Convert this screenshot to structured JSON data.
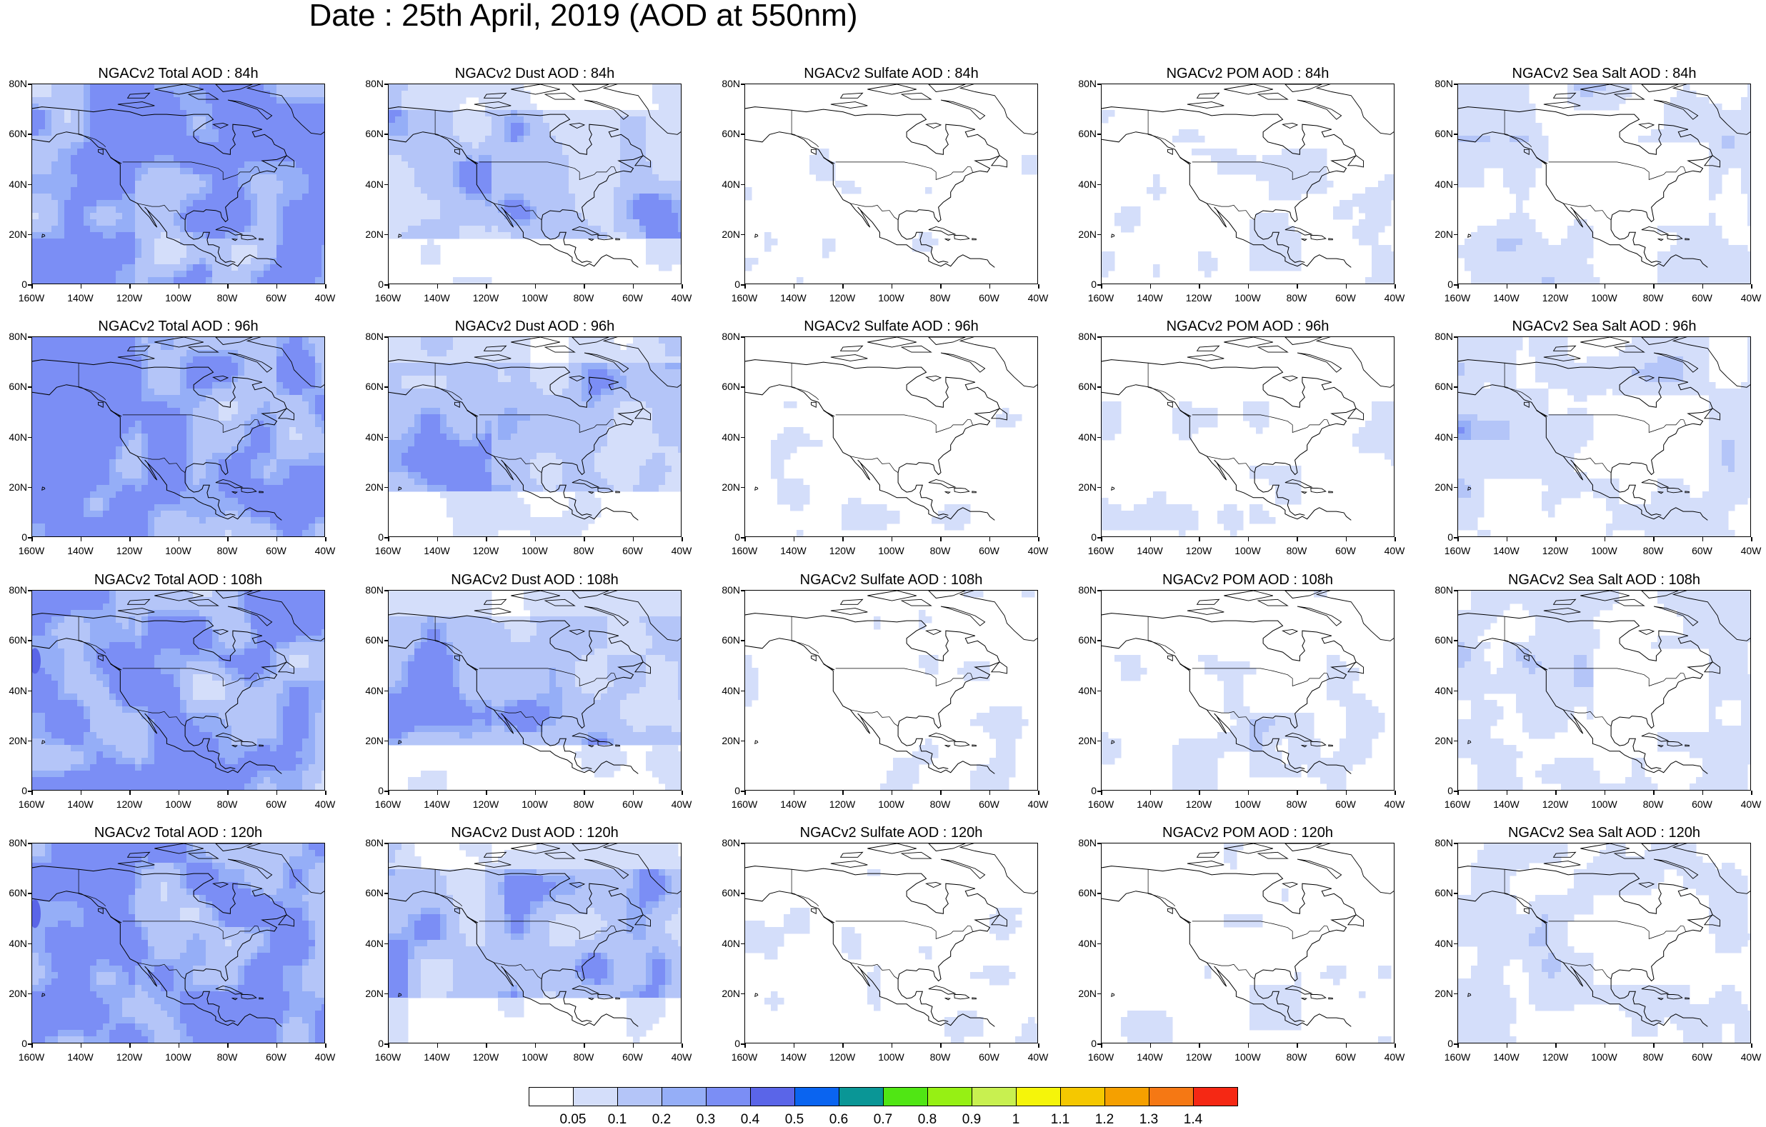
{
  "title": "Date : 25th April, 2019 (AOD at 550nm)",
  "grid": {
    "rows": [
      "84h",
      "96h",
      "108h",
      "120h"
    ],
    "columns": [
      "total",
      "dust",
      "sulfate",
      "pom",
      "seasalt"
    ]
  },
  "panels": [
    [
      "NGACv2 Total AOD : 84h",
      "NGACv2 Dust AOD : 84h",
      "NGACv2 Sulfate AOD : 84h",
      "NGACv2 POM AOD : 84h",
      "NGACv2 Sea Salt AOD : 84h"
    ],
    [
      "NGACv2 Total AOD : 96h",
      "NGACv2 Dust AOD : 96h",
      "NGACv2 Sulfate AOD : 96h",
      "NGACv2 POM AOD : 96h",
      "NGACv2 Sea Salt AOD : 96h"
    ],
    [
      "NGACv2 Total AOD : 108h",
      "NGACv2 Dust AOD : 108h",
      "NGACv2 Sulfate AOD : 108h",
      "NGACv2 POM AOD : 108h",
      "NGACv2 Sea Salt AOD : 108h"
    ],
    [
      "NGACv2 Total AOD : 120h",
      "NGACv2 Dust AOD : 120h",
      "NGACv2 Sulfate AOD : 120h",
      "NGACv2 POM AOD : 120h",
      "NGACv2 Sea Salt  AOD : 120h"
    ]
  ],
  "lat_labels": [
    "80N",
    "60N",
    "40N",
    "20N",
    "0"
  ],
  "lon_labels": [
    "160W",
    "140W",
    "120W",
    "100W",
    "80W",
    "60W",
    "40W"
  ],
  "colorbar": {
    "labels": [
      "0.05",
      "0.1",
      "0.2",
      "0.3",
      "0.4",
      "0.5",
      "0.6",
      "0.7",
      "0.8",
      "0.9",
      "1",
      "1.1",
      "1.2",
      "1.3",
      "1.4"
    ],
    "colors": [
      "#ffffff",
      "#d4defa",
      "#b4c5f8",
      "#95aef7",
      "#7b8ef5",
      "#5a65e8",
      "#0a64f0",
      "#0a9696",
      "#50e614",
      "#96f014",
      "#c8f050",
      "#f5f50a",
      "#f5c800",
      "#f5a000",
      "#f57814",
      "#f52814"
    ]
  }
}
